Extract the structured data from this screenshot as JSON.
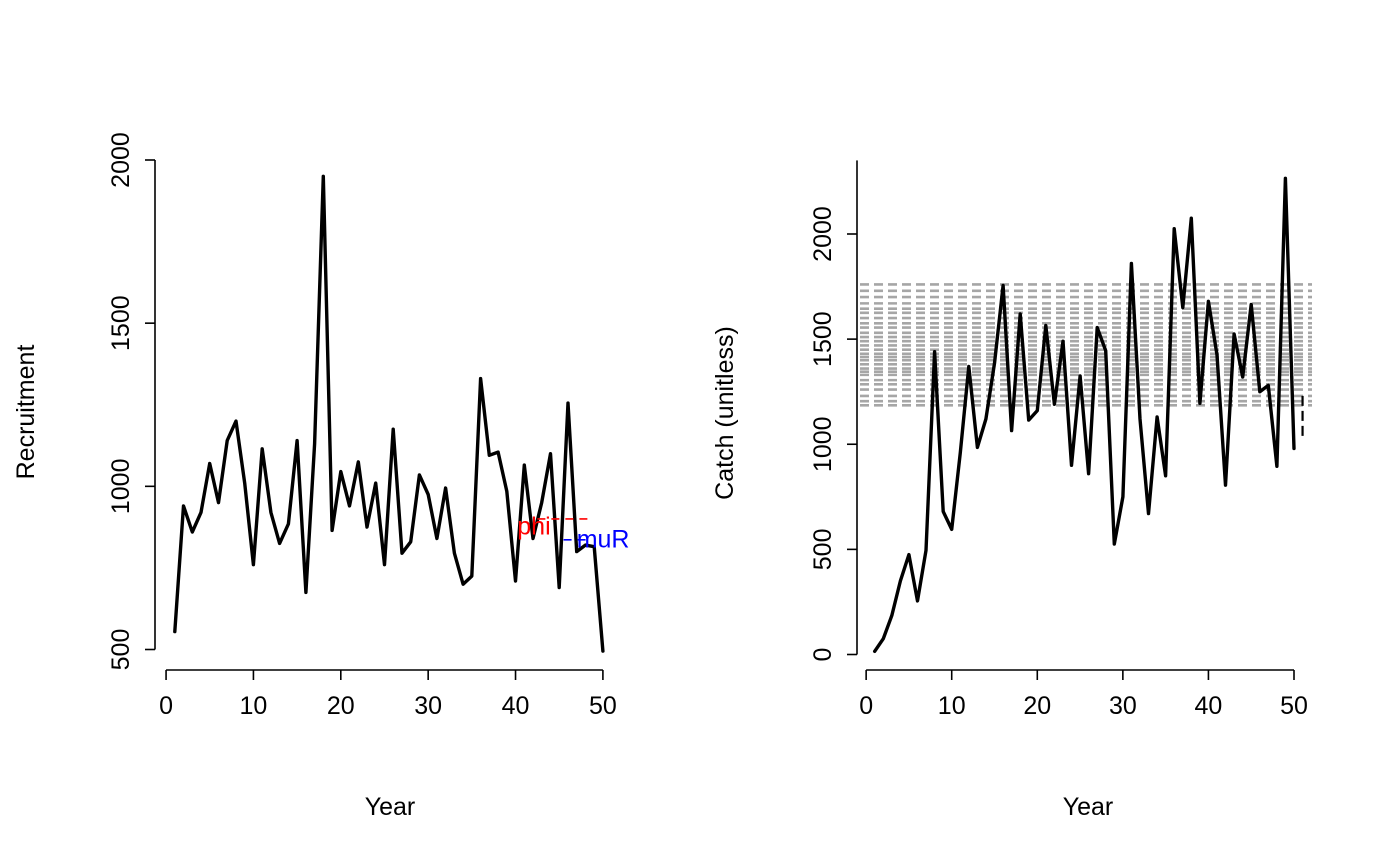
{
  "chart_data": [
    {
      "type": "line",
      "xlabel": "Year",
      "ylabel": "Recruitment",
      "xlim": [
        1,
        50
      ],
      "ylim": [
        490,
        2000
      ],
      "xticks": [
        "0",
        "10",
        "20",
        "30",
        "40",
        "50"
      ],
      "yticks": [
        "500",
        "1000",
        "1500",
        "2000"
      ],
      "x": [
        1,
        2,
        3,
        4,
        5,
        6,
        7,
        8,
        9,
        10,
        11,
        12,
        13,
        14,
        15,
        16,
        17,
        18,
        19,
        20,
        21,
        22,
        23,
        24,
        25,
        26,
        27,
        28,
        29,
        30,
        31,
        32,
        33,
        34,
        35,
        36,
        37,
        38,
        39,
        40,
        41,
        42,
        43,
        44,
        45,
        46,
        47,
        48,
        49,
        50
      ],
      "series": [
        {
          "values": [
            555,
            940,
            860,
            920,
            1070,
            950,
            1140,
            1200,
            1010,
            760,
            1115,
            920,
            825,
            885,
            1140,
            675,
            1130,
            1950,
            865,
            1045,
            940,
            1075,
            875,
            1010,
            760,
            1175,
            795,
            830,
            1035,
            975,
            840,
            995,
            795,
            700,
            725,
            1330,
            1095,
            1105,
            985,
            710,
            1065,
            840,
            950,
            1100,
            690,
            1255,
            800,
            820,
            815,
            495
          ]
        }
      ],
      "annotations": [
        {
          "text": "phi",
          "color": "#ff0000",
          "x": 40.2,
          "y": 880
        },
        {
          "text": "muR",
          "color": "#0000ff",
          "x": 47.0,
          "y": 840
        }
      ],
      "reference_lines": [
        {
          "color": "#ff0000",
          "style": "dashed",
          "x1": 42.5,
          "x2": 48.5,
          "y": 900
        },
        {
          "color": "#0000ff",
          "style": "dashed",
          "x1": 45.5,
          "x2": 48.5,
          "y": 836
        }
      ]
    },
    {
      "type": "line",
      "xlabel": "Year",
      "ylabel": "Catch (unitless)",
      "xlim": [
        1,
        51
      ],
      "ylim": [
        0,
        2350
      ],
      "xticks": [
        "0",
        "10",
        "20",
        "30",
        "40",
        "50"
      ],
      "yticks": [
        "0",
        "500",
        "1000",
        "1500",
        "2000"
      ],
      "x": [
        1,
        2,
        3,
        4,
        5,
        6,
        7,
        8,
        9,
        10,
        11,
        12,
        13,
        14,
        15,
        16,
        17,
        18,
        19,
        20,
        21,
        22,
        23,
        24,
        25,
        26,
        27,
        28,
        29,
        30,
        31,
        32,
        33,
        34,
        35,
        36,
        37,
        38,
        39,
        40,
        41,
        42,
        43,
        44,
        45,
        46,
        47,
        48,
        49,
        50
      ],
      "series": [
        {
          "values": [
            15,
            75,
            185,
            350,
            475,
            255,
            495,
            1440,
            680,
            595,
            960,
            1370,
            985,
            1120,
            1385,
            1755,
            1065,
            1620,
            1115,
            1160,
            1565,
            1190,
            1490,
            900,
            1325,
            860,
            1555,
            1445,
            525,
            750,
            1860,
            1120,
            670,
            1130,
            850,
            2025,
            1650,
            2075,
            1195,
            1680,
            1425,
            805,
            1525,
            1320,
            1665,
            1250,
            1280,
            895,
            2265,
            980
          ]
        }
      ],
      "tail_values": [
        {
          "x": 51,
          "y1": 1230,
          "y2": 1020
        }
      ],
      "reference_lines": [
        1185,
        1205,
        1230,
        1260,
        1285,
        1305,
        1330,
        1345,
        1360,
        1380,
        1400,
        1415,
        1430,
        1450,
        1470,
        1490,
        1510,
        1530,
        1555,
        1575,
        1600,
        1625,
        1645,
        1670,
        1700,
        1730,
        1760
      ]
    }
  ]
}
